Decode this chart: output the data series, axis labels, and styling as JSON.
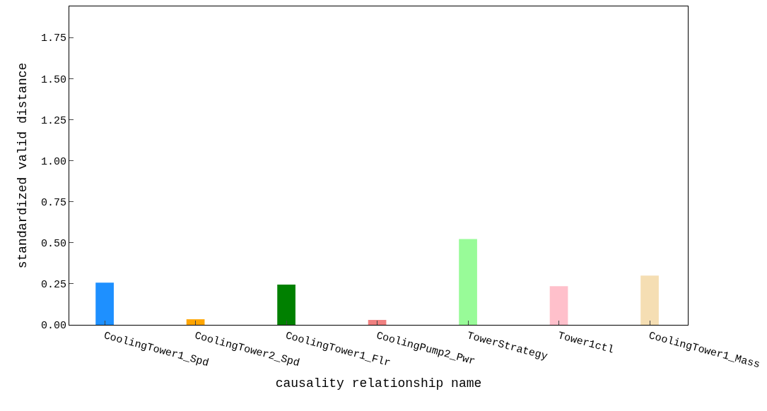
{
  "chart_data": {
    "type": "bar",
    "xlabel": "causality relationship name",
    "ylabel": "standardized valid distance",
    "categories": [
      "CoolingTower1_Spd",
      "CoolingTower2_Spd",
      "CoolingTower1_Flr",
      "CoolingPump2_Pwr",
      "TowerStrategy",
      "Tower1ctl",
      "CoolingTower1_Mass"
    ],
    "values": [
      0.257,
      0.034,
      0.245,
      0.03,
      0.523,
      0.236,
      0.3
    ],
    "colors": [
      "#1e90ff",
      "#ffa500",
      "#008000",
      "#f08080",
      "#98fb98",
      "#ffc0cb",
      "#f5deb3"
    ],
    "ylim": [
      0,
      1.94
    ],
    "yticks": [
      {
        "value": 0,
        "label": "0.00"
      },
      {
        "value": 0.25,
        "label": "0.25"
      },
      {
        "value": 0.5,
        "label": "0.50"
      },
      {
        "value": 0.75,
        "label": "0.75"
      },
      {
        "value": 1,
        "label": "1.00"
      },
      {
        "value": 1.25,
        "label": "1.25"
      },
      {
        "value": 1.5,
        "label": "1.50"
      },
      {
        "value": 1.75,
        "label": "1.75"
      }
    ]
  }
}
